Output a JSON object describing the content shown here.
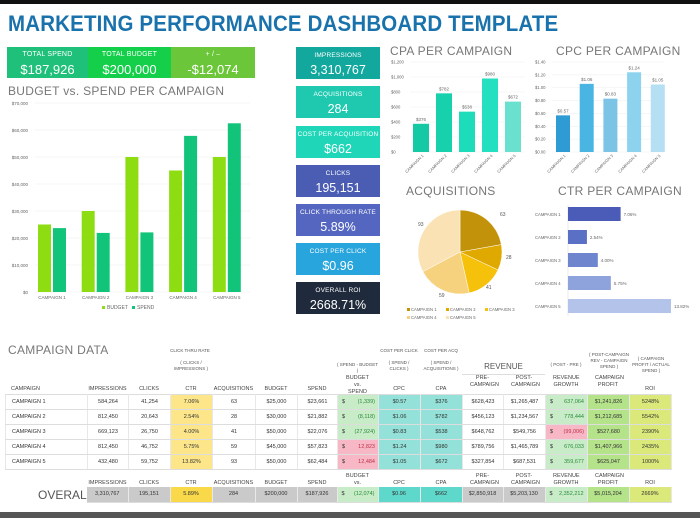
{
  "title": "MARKETING PERFORMANCE DASHBOARD TEMPLATE",
  "top_kpis": [
    {
      "label": "TOTAL SPEND",
      "value": "$187,926",
      "color": "#1fc07a"
    },
    {
      "label": "TOTAL BUDGET",
      "value": "$200,000",
      "color": "#14cf4a"
    },
    {
      "label": "+ / –",
      "value": "-$12,074",
      "color": "#6cc63a"
    }
  ],
  "side_kpis": [
    {
      "label": "IMPRESSIONS",
      "value": "3,310,767",
      "color": "#13a89e"
    },
    {
      "label": "ACQUISITIONS",
      "value": "284",
      "color": "#1fc9b0"
    },
    {
      "label": "COST PER ACQUISITION",
      "value": "$662",
      "color": "#1fd6b9"
    },
    {
      "label": "CLICKS",
      "value": "195,151",
      "color": "#4a5db3"
    },
    {
      "label": "CLICK THROUGH RATE",
      "value": "5.89%",
      "color": "#5466bf"
    },
    {
      "label": "COST PER CLICK",
      "value": "$0.96",
      "color": "#27a5dc"
    },
    {
      "label": "OVERALL ROI",
      "value": "2668.71%",
      "color": "#1f2b3c"
    }
  ],
  "chart_data": [
    {
      "type": "bar",
      "title": "BUDGET vs. SPEND PER CAMPAIGN",
      "categories": [
        "CAMPAIGN 1",
        "CAMPAIGN 2",
        "CAMPAIGN 3",
        "CAMPAIGN 4",
        "CAMPAIGN 5"
      ],
      "series": [
        {
          "name": "BUDGET",
          "values": [
            25000,
            30000,
            50000,
            45000,
            50000
          ],
          "color": "#8edc12"
        },
        {
          "name": "SPEND",
          "values": [
            23661,
            21882,
            22076,
            57823,
            62484
          ],
          "color": "#12c47a"
        }
      ],
      "yticks": [
        "$0",
        "$10,000",
        "$20,000",
        "$30,000",
        "$40,000",
        "$50,000",
        "$60,000",
        "$70,000"
      ],
      "ylim": [
        0,
        70000
      ],
      "legend": "bottom",
      "grid": true
    },
    {
      "type": "bar",
      "title": "CPA PER CAMPAIGN",
      "categories": [
        "CAMPAIGN 1",
        "CAMPAIGN 2",
        "CAMPAIGN 3",
        "CAMPAIGN 4",
        "CAMPAIGN 5"
      ],
      "values": [
        376,
        782,
        538,
        980,
        672
      ],
      "labels": [
        "$376",
        "$782",
        "$538",
        "$980",
        "$672"
      ],
      "colors": [
        "#15c9a4",
        "#17d1ad",
        "#1cdcba",
        "#24dfc0",
        "#6ae0cf"
      ],
      "yticks": [
        "$0",
        "$200",
        "$400",
        "$600",
        "$800",
        "$1,000",
        "$1,200"
      ],
      "ylim": [
        0,
        1200
      ]
    },
    {
      "type": "bar",
      "title": "CPC PER CAMPAIGN",
      "categories": [
        "CAMPAIGN 1",
        "CAMPAIGN 2",
        "CAMPAIGN 3",
        "CAMPAIGN 4",
        "CAMPAIGN 5"
      ],
      "values": [
        0.57,
        1.06,
        0.83,
        1.24,
        1.05
      ],
      "labels": [
        "$0.57",
        "$1.06",
        "$0.83",
        "$1.24",
        "$1.05"
      ],
      "colors": [
        "#2e9bd4",
        "#4ab5e3",
        "#7cc4e6",
        "#8dd3ee",
        "#b5dff2"
      ],
      "yticks": [
        "$0.00",
        "$0.20",
        "$0.40",
        "$0.60",
        "$0.80",
        "$1.00",
        "$1.20",
        "$1.40"
      ],
      "ylim": [
        0,
        1.4
      ]
    },
    {
      "type": "pie",
      "title": "ACQUISITIONS",
      "categories": [
        "CAMPAIGN 1",
        "CAMPAIGN 2",
        "CAMPAIGN 3",
        "CAMPAIGN 4",
        "CAMPAIGN 5"
      ],
      "values": [
        63,
        28,
        41,
        59,
        93
      ],
      "colors": [
        "#c2920a",
        "#dfa900",
        "#f5c10a",
        "#f7d27e",
        "#fbe2b4"
      ],
      "legend": "bottom"
    },
    {
      "type": "bar",
      "orientation": "horizontal",
      "title": "CTR PER CAMPAIGN",
      "categories": [
        "CAMPAIGN 1",
        "CAMPAIGN 2",
        "CAMPAIGN 3",
        "CAMPAIGN 4",
        "CAMPAIGN 5"
      ],
      "values": [
        7.06,
        2.54,
        4.0,
        5.75,
        13.82
      ],
      "labels": [
        "7.06%",
        "2.54%",
        "4.00%",
        "5.75%",
        "13.82%"
      ],
      "colors": [
        "#4a5cb8",
        "#5a70c4",
        "#6f86cf",
        "#8ea2db",
        "#b3c3ea"
      ]
    }
  ],
  "table": {
    "title": "CAMPAIGN DATA",
    "notes": {
      "ctr_top": "CLICK THRU RATE",
      "ctr": "( CLICKS / IMPRESSIONS )",
      "bvs": "( SPEND - BUDGET )",
      "cpc_top": "COST PER CLICK",
      "cpc": "( SPEND / CLICKS )",
      "cpa_top": "COST PER ACQ",
      "cpa": "( SPEND / ACQUISITIONS )",
      "revenue": "REVENUE",
      "growth": "( POST - PRE )",
      "profit": "( POST-CAMPAIGN REV - CAMPAIGN SPEND )",
      "roi": "( CAMPAIGN PROFIT / ACTUAL SPEND )"
    },
    "columns": [
      "CAMPAIGN",
      "IMPRESSIONS",
      "CLICKS",
      "CTR",
      "ACQUISITIONS",
      "BUDGET",
      "SPEND",
      "BUDGET vs. SPEND",
      "CPC",
      "CPA",
      "PRE- CAMPAIGN",
      "POST- CAMPAIGN",
      "REVENUE GROWTH",
      "CAMPAIGN PROFIT",
      "ROI"
    ],
    "rows": [
      [
        "CAMPAIGN 1",
        "584,264",
        "41,254",
        "7.06%",
        "63",
        "$25,000",
        "$23,661",
        "(1,339)",
        "$0.57",
        "$376",
        "$628,423",
        "$1,265,487",
        "637,064",
        "$1,241,826",
        "5248%"
      ],
      [
        "CAMPAIGN 2",
        "812,450",
        "20,643",
        "2.54%",
        "28",
        "$30,000",
        "$21,882",
        "(8,118)",
        "$1.06",
        "$782",
        "$456,123",
        "$1,234,567",
        "778,444",
        "$1,212,685",
        "5542%"
      ],
      [
        "CAMPAIGN 3",
        "669,123",
        "26,750",
        "4.00%",
        "41",
        "$50,000",
        "$22,076",
        "(27,924)",
        "$0.83",
        "$538",
        "$648,762",
        "$549,756",
        "(99,006)",
        "$527,680",
        "2390%"
      ],
      [
        "CAMPAIGN 4",
        "812,450",
        "46,752",
        "5.75%",
        "59",
        "$45,000",
        "$57,823",
        "12,823",
        "$1.24",
        "$980",
        "$789,756",
        "$1,465,789",
        "676,033",
        "$1,407,966",
        "2435%"
      ],
      [
        "CAMPAIGN 5",
        "432,480",
        "59,752",
        "13.82%",
        "93",
        "$50,000",
        "$62,484",
        "12,484",
        "$1.05",
        "$672",
        "$327,854",
        "$687,531",
        "359,677",
        "$625,047",
        "1000%"
      ]
    ],
    "overall_label": "OVERALL",
    "overall": [
      "3,310,767",
      "195,151",
      "5.89%",
      "284",
      "$200,000",
      "$187,926",
      "(12,074)",
      "$0.96",
      "$662",
      "$2,850,918",
      "$5,203,130",
      "2,352,212",
      "$5,015,204",
      "2669%"
    ],
    "currency_symbol": "$"
  }
}
